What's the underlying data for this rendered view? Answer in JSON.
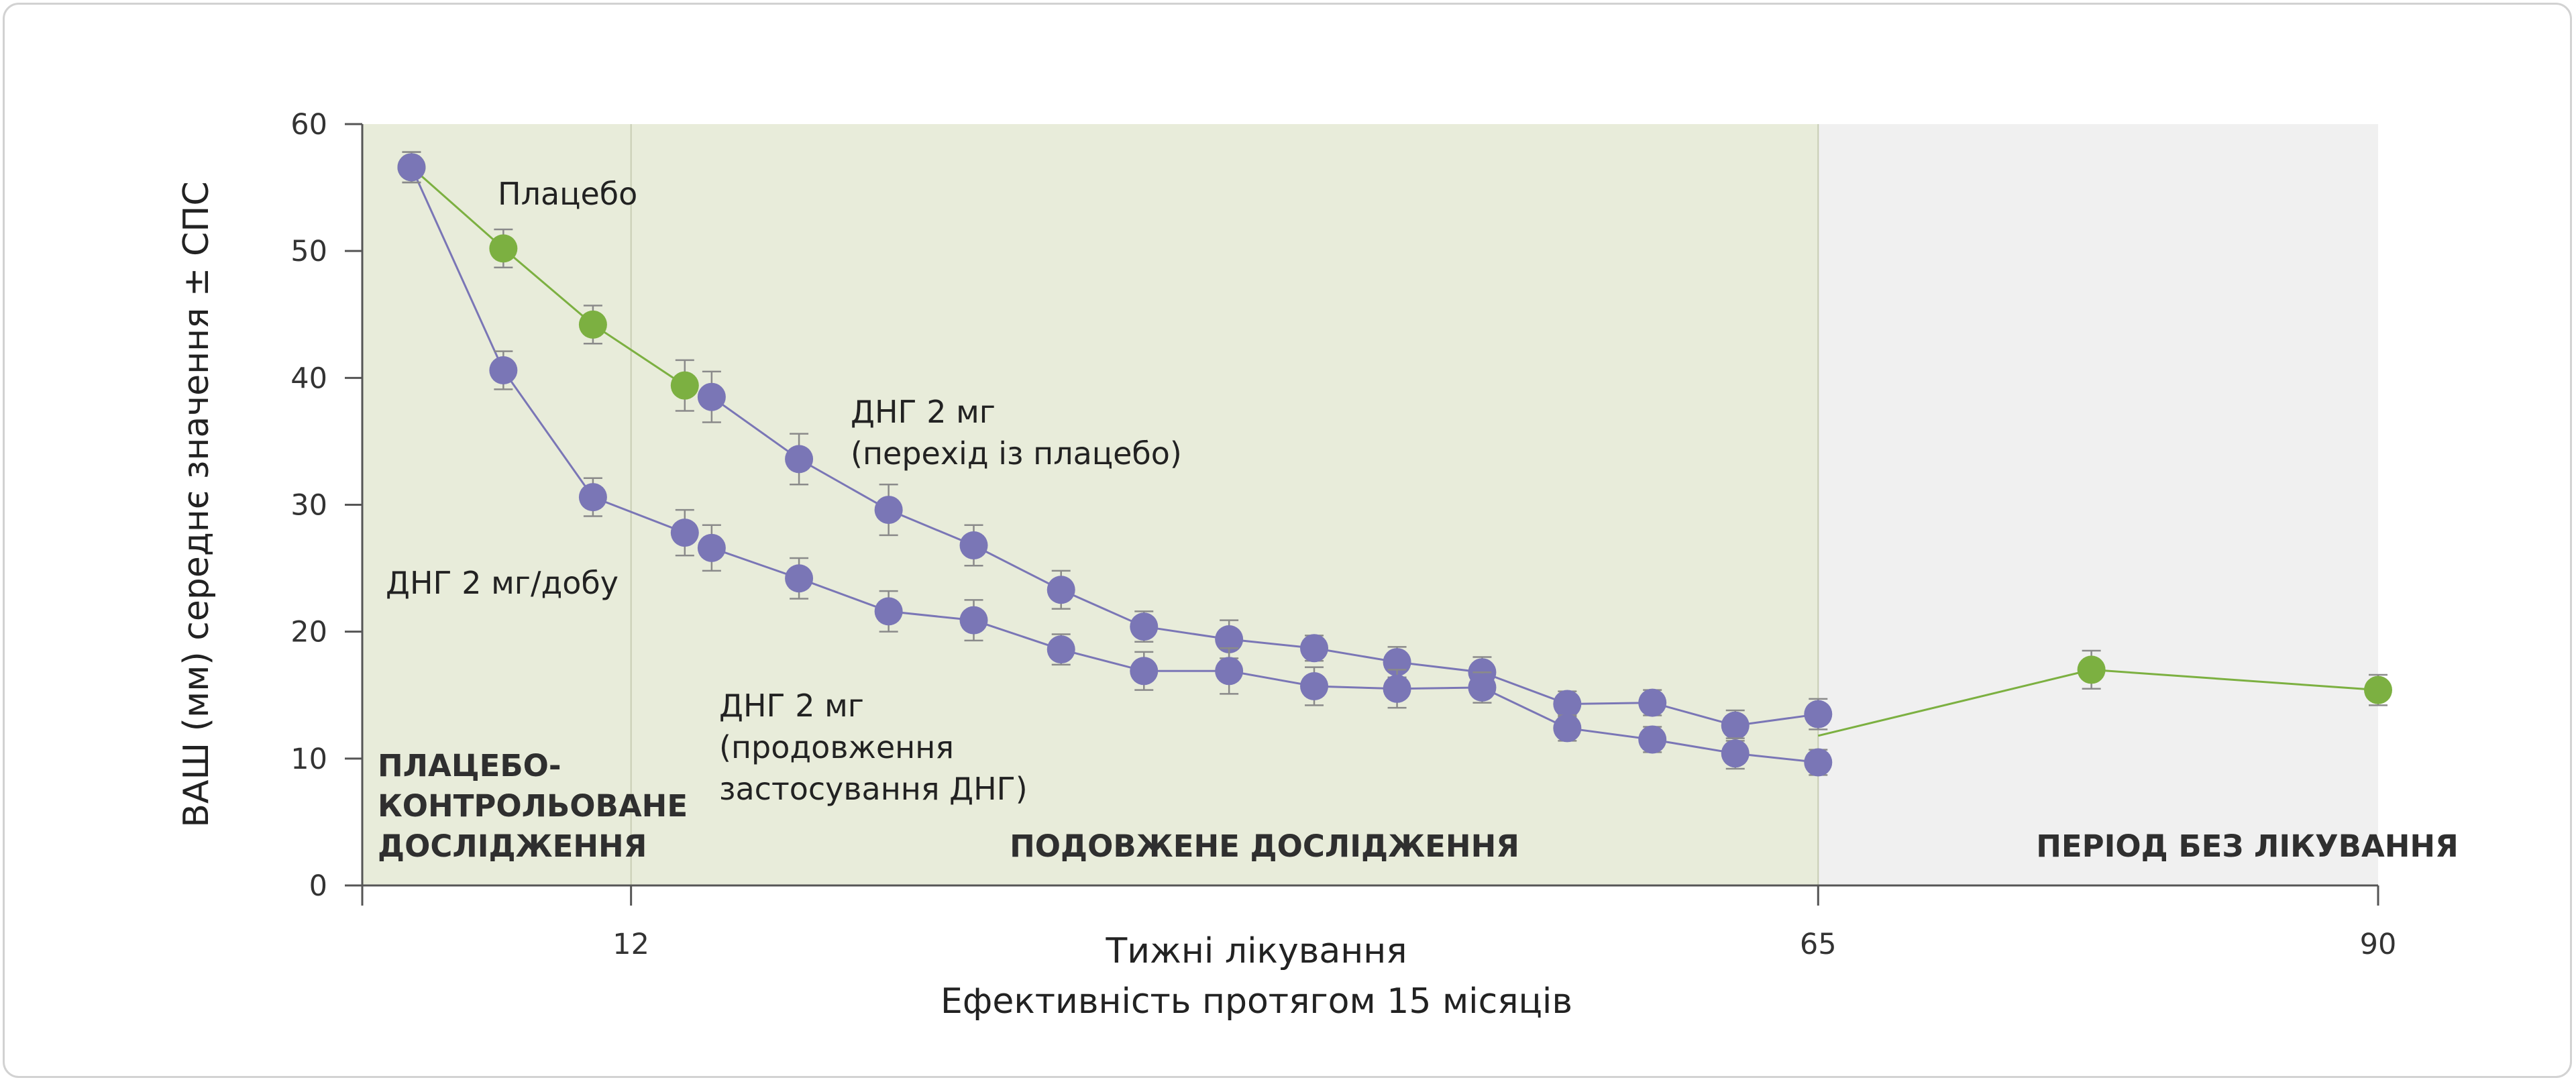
{
  "chart_data": {
    "type": "line",
    "ylabel": "ВАШ (мм) середнє значення ± СПС",
    "xlabel": "Тижні лікування",
    "subtitle": "Ефективність протягом 15 місяців",
    "ylim": [
      0,
      60
    ],
    "xlim": [
      0,
      90
    ],
    "yticks": [
      "0",
      "10",
      "20",
      "30",
      "40",
      "50",
      "60"
    ],
    "xticks": [
      "12",
      "65",
      "90"
    ],
    "grid": false,
    "colors": {
      "green": "#7cb041",
      "purple": "#7a76b6",
      "placebo_region": "#e8ecda",
      "no_treatment_region": "#f0f0f0"
    },
    "regions": [
      {
        "name": "ПЛАЦЕБО-КОНТРОЛЬОВАНЕ ДОСЛІДЖЕННЯ",
        "lines": [
          "ПЛАЦЕБО-",
          "КОНТРОЛЬОВАНЕ",
          "ДОСЛІДЖЕННЯ"
        ],
        "x_start": 0,
        "x_end": 12
      },
      {
        "name": "ПОДОВЖЕНЕ ДОСЛІДЖЕННЯ",
        "lines": [
          "ПОДОВЖЕНЕ ДОСЛІДЖЕННЯ"
        ],
        "x_start": 12,
        "x_end": 65
      },
      {
        "name": "ПЕРІОД БЕЗ ЛІКУВАННЯ",
        "lines": [
          "ПЕРІОД БЕЗ ЛІКУВАННЯ"
        ],
        "x_start": 65,
        "x_end": 90
      }
    ],
    "series": [
      {
        "name": "Плацебо",
        "label_lines": [
          "Плацебо"
        ],
        "color": "green",
        "x": [
          2.2,
          6.3,
          10.3,
          14.4
        ],
        "y": [
          56.6,
          50.2,
          44.2,
          39.4
        ],
        "err": [
          1.2,
          1.5,
          1.5,
          2.0
        ]
      },
      {
        "name": "ДНГ 2 мг/добу",
        "label_lines": [
          "ДНГ 2 мг/добу"
        ],
        "color": "purple",
        "x": [
          2.2,
          6.3,
          10.3,
          14.4
        ],
        "y": [
          56.6,
          40.6,
          30.6,
          27.8
        ],
        "err": [
          1.2,
          1.5,
          1.5,
          1.8
        ]
      },
      {
        "name": "ДНГ 2 мг (перехід із плацебо)",
        "label_lines": [
          "ДНГ 2 мг",
          "(перехід із плацебо)"
        ],
        "color": "purple",
        "x": [
          15.6,
          19.5,
          23.5,
          27.3,
          31.2,
          34.9,
          38.7,
          42.5,
          46.2,
          50.0,
          53.8,
          57.6,
          61.3,
          65.0
        ],
        "y": [
          38.5,
          33.6,
          29.6,
          26.8,
          23.3,
          20.4,
          19.4,
          18.7,
          17.6,
          16.8,
          14.3,
          14.4,
          12.6,
          13.5
        ],
        "err": [
          2.0,
          2.0,
          2.0,
          1.6,
          1.5,
          1.2,
          1.5,
          1.0,
          1.2,
          1.2,
          1.0,
          1.0,
          1.2,
          1.2
        ]
      },
      {
        "name": "ДНГ 2 мг (продовження застосування ДНГ)",
        "label_lines": [
          "ДНГ 2 мг",
          "(продовження",
          "застосування ДНГ)"
        ],
        "color": "purple",
        "x": [
          15.6,
          19.5,
          23.5,
          27.3,
          31.2,
          34.9,
          38.7,
          42.5,
          46.2,
          50.0,
          53.8,
          57.6,
          61.3,
          65.0
        ],
        "y": [
          26.6,
          24.2,
          21.6,
          20.9,
          18.6,
          16.9,
          16.9,
          15.7,
          15.5,
          15.6,
          12.4,
          11.5,
          10.4,
          9.7
        ],
        "err": [
          1.8,
          1.6,
          1.6,
          1.6,
          1.2,
          1.5,
          1.8,
          1.5,
          1.5,
          1.2,
          1.0,
          1.0,
          1.2,
          1.0
        ]
      },
      {
        "name": "Період без лікування",
        "label_lines": [],
        "color": "green",
        "x": [
          65.0,
          77.2,
          90.0
        ],
        "y": [
          11.8,
          17.0,
          15.4
        ],
        "err": [
          0,
          1.5,
          1.2
        ],
        "markers": [
          false,
          true,
          true
        ]
      }
    ]
  }
}
